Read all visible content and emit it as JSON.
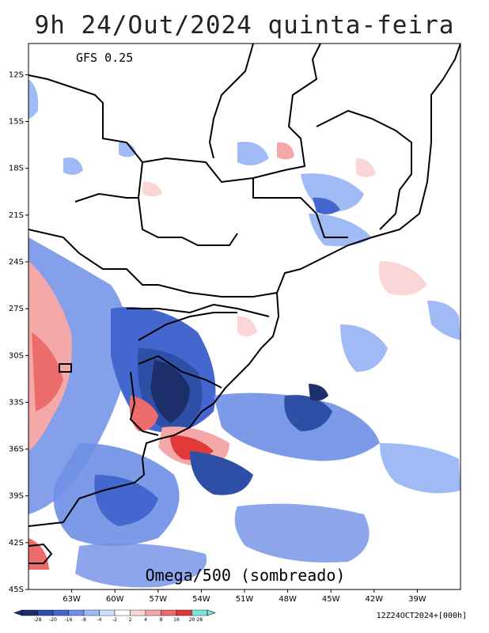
{
  "title": "9h 24/Out/2024 quinta-feira",
  "model": "GFS 0.25",
  "field_label": "Omega/500 (sombreado)",
  "run_label": "12Z24OCT2024+[000h]",
  "map": {
    "lon_range": [
      -66,
      -36
    ],
    "lat_range": [
      -45,
      -10
    ],
    "lat_ticks": [
      "12S",
      "15S",
      "18S",
      "21S",
      "24S",
      "27S",
      "30S",
      "33S",
      "36S",
      "39S",
      "42S",
      "45S"
    ],
    "lon_ticks": [
      "63W",
      "60W",
      "57W",
      "54W",
      "51W",
      "48W",
      "45W",
      "42W",
      "39W"
    ]
  },
  "colorbar": {
    "ticks": [
      "-28",
      "-20",
      "-16",
      "-8",
      "-4",
      "-2",
      "2",
      "4",
      "8",
      "16",
      "20",
      "28"
    ],
    "colors": [
      "#1c2f6b",
      "#2e4fa6",
      "#4466cf",
      "#6f8fe6",
      "#9fbaf5",
      "#cfe0fb",
      "#ffffff",
      "#fbd6d6",
      "#f5a8a8",
      "#ec6b6b",
      "#e03a3a",
      "#7fe3e0"
    ]
  }
}
